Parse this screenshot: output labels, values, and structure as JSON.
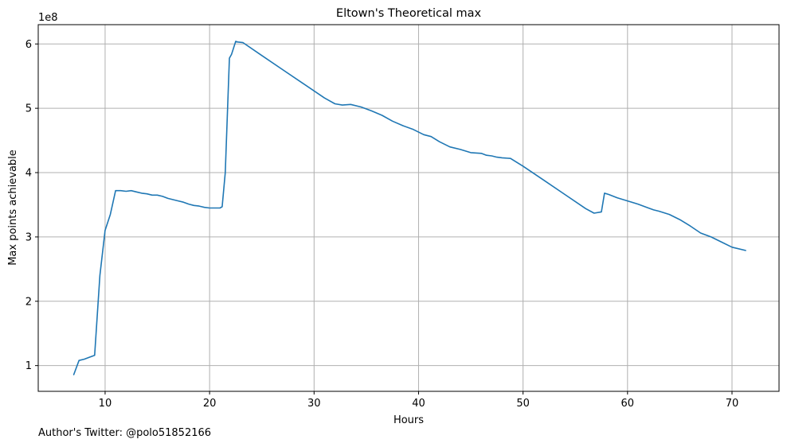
{
  "chart_data": {
    "type": "line",
    "title": "Eltown's Theoretical max",
    "xlabel": "Hours",
    "ylabel": "Max points achievable",
    "y_offset_label": "1e8",
    "xlim": [
      3.6,
      74.5
    ],
    "ylim": [
      0.6,
      6.3
    ],
    "x_ticks": [
      10,
      20,
      30,
      40,
      50,
      60,
      70
    ],
    "x_tick_labels": [
      "10",
      "20",
      "30",
      "40",
      "50",
      "60",
      "70"
    ],
    "y_ticks": [
      1,
      2,
      3,
      4,
      5,
      6
    ],
    "y_tick_labels": [
      "1",
      "2",
      "3",
      "4",
      "5",
      "6"
    ],
    "grid": true,
    "line_color": "#1f77b4",
    "series": [
      {
        "x": [
          7.0,
          7.5,
          8.0,
          8.5,
          9.0,
          9.5,
          10.0,
          10.5,
          11.0,
          11.5,
          12.0,
          12.5,
          13.0,
          13.5,
          14.0,
          14.5,
          15.0,
          15.5,
          16.0,
          16.5,
          17.0,
          17.5,
          18.0,
          18.5,
          19.0,
          19.5,
          20.0,
          20.5,
          21.0,
          21.2,
          21.5,
          21.9,
          22.1,
          22.5,
          22.7,
          23.2,
          25,
          27,
          29,
          31,
          32.0,
          32.7,
          33.5,
          34.5,
          35.5,
          36.5,
          37.5,
          38.5,
          39.5,
          40.5,
          41.2,
          42.0,
          43.0,
          44.0,
          45.0,
          46.0,
          46.5,
          47.0,
          47.5,
          48.0,
          48.8,
          50,
          52,
          54,
          56,
          56.8,
          57.5,
          57.8,
          58.2,
          59.0,
          60.0,
          61.0,
          62.0,
          62.5,
          63.0,
          64.0,
          65.0,
          66.0,
          67.0,
          68.0,
          69.0,
          70.0,
          71.3
        ],
        "y": [
          0.86,
          1.08,
          1.1,
          1.13,
          1.16,
          2.4,
          3.1,
          3.35,
          3.72,
          3.72,
          3.71,
          3.72,
          3.7,
          3.68,
          3.67,
          3.65,
          3.65,
          3.63,
          3.6,
          3.58,
          3.56,
          3.54,
          3.51,
          3.49,
          3.48,
          3.46,
          3.45,
          3.45,
          3.45,
          3.47,
          4.0,
          5.78,
          5.84,
          6.04,
          6.03,
          6.02,
          5.82,
          5.6,
          5.38,
          5.16,
          5.07,
          5.05,
          5.06,
          5.02,
          4.96,
          4.89,
          4.8,
          4.73,
          4.67,
          4.59,
          4.56,
          4.48,
          4.4,
          4.36,
          4.31,
          4.3,
          4.27,
          4.26,
          4.24,
          4.23,
          4.22,
          4.1,
          3.88,
          3.66,
          3.44,
          3.37,
          3.39,
          3.68,
          3.66,
          3.61,
          3.56,
          3.51,
          3.45,
          3.42,
          3.4,
          3.35,
          3.27,
          3.17,
          3.06,
          3.0,
          2.92,
          2.84,
          2.79
        ]
      }
    ]
  },
  "footer": {
    "credit": "Author's Twitter: @polo51852166"
  }
}
